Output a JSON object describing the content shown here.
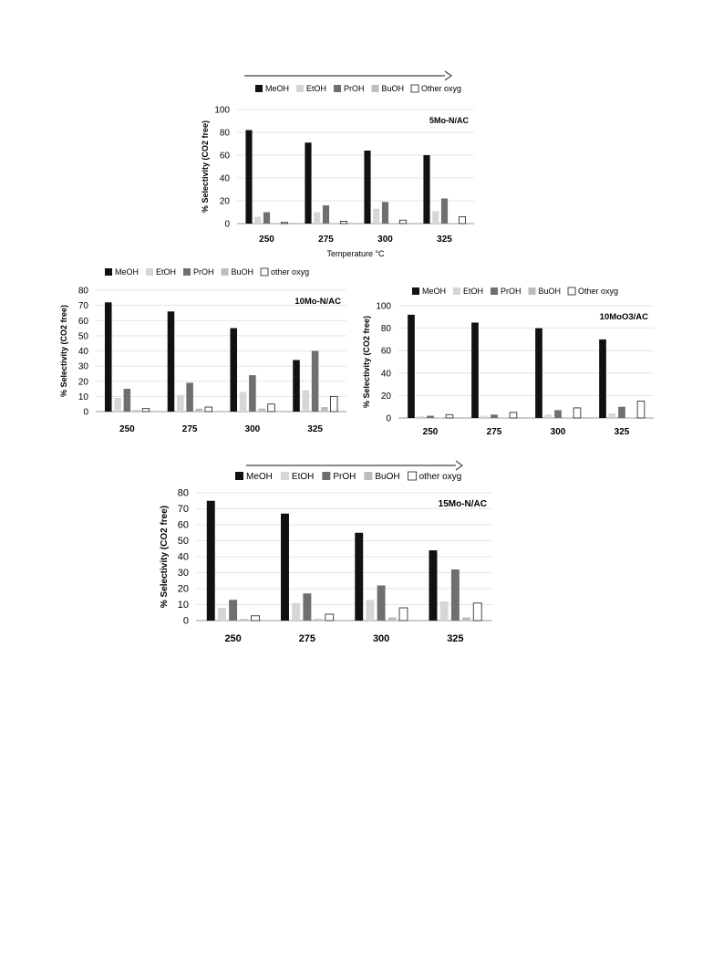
{
  "colors": {
    "MeOH": "#111111",
    "EtOH": "#d6d6d6",
    "PrOH": "#6f6f6f",
    "BuOH": "#bdbdbd",
    "Other": "#ffffff",
    "grid": "#dddddd",
    "axis": "#999999"
  },
  "chart_data": [
    {
      "type": "bar",
      "title": "5Mo-N/AC",
      "ylabel": "% Selectivity (CO2 free)",
      "xlabel": "Temperature °C",
      "ylim": [
        0,
        100
      ],
      "yticks": [
        0,
        20,
        40,
        60,
        80,
        100
      ],
      "legend_position": "top",
      "categories": [
        "250",
        "275",
        "300",
        "325"
      ],
      "series": [
        {
          "name": "MeOH",
          "values": [
            82,
            71,
            64,
            60
          ]
        },
        {
          "name": "EtOH",
          "values": [
            6,
            10,
            13,
            11
          ]
        },
        {
          "name": "PrOH",
          "values": [
            10,
            16,
            19,
            22
          ]
        },
        {
          "name": "BuOH",
          "values": [
            0.5,
            0.5,
            0.5,
            0.5
          ]
        },
        {
          "name": "Other oxyg",
          "values": [
            1,
            2,
            3,
            6
          ]
        }
      ]
    },
    {
      "type": "bar",
      "title": "10Mo-N/AC",
      "ylabel": "% Selectivity (CO2 free)",
      "xlabel": "",
      "ylim": [
        0,
        80
      ],
      "yticks": [
        0,
        10,
        20,
        30,
        40,
        50,
        60,
        70,
        80
      ],
      "legend_position": "top",
      "categories": [
        "250",
        "275",
        "300",
        "325"
      ],
      "series": [
        {
          "name": "MeOH",
          "values": [
            72,
            66,
            55,
            34
          ]
        },
        {
          "name": "EtOH",
          "values": [
            9,
            11,
            13,
            14
          ]
        },
        {
          "name": "PrOH",
          "values": [
            15,
            19,
            24,
            40
          ]
        },
        {
          "name": "BuOH",
          "values": [
            1,
            2,
            2,
            3
          ]
        },
        {
          "name": "other oxyg",
          "values": [
            2,
            3,
            5,
            10
          ]
        }
      ]
    },
    {
      "type": "bar",
      "title": "10MoO3/AC",
      "ylabel": "% Selectivity (CO2 free)",
      "xlabel": "",
      "ylim": [
        0,
        100
      ],
      "yticks": [
        0,
        20,
        40,
        60,
        80,
        100
      ],
      "legend_position": "top",
      "categories": [
        "250",
        "275",
        "300",
        "325"
      ],
      "series": [
        {
          "name": "MeOH",
          "values": [
            92,
            85,
            80,
            70
          ]
        },
        {
          "name": "EtOH",
          "values": [
            1.5,
            2,
            3,
            4
          ]
        },
        {
          "name": "PrOH",
          "values": [
            2,
            3,
            7,
            10
          ]
        },
        {
          "name": "BuOH",
          "values": [
            0.3,
            0.3,
            0.5,
            0.5
          ]
        },
        {
          "name": "Other oxyg",
          "values": [
            3,
            5,
            9,
            15
          ]
        }
      ]
    },
    {
      "type": "bar",
      "title": "15Mo-N/AC",
      "ylabel": "% Selectivity (CO2 free)",
      "xlabel": "",
      "ylim": [
        0,
        80
      ],
      "yticks": [
        0,
        10,
        20,
        30,
        40,
        50,
        60,
        70,
        80
      ],
      "legend_position": "top",
      "categories": [
        "250",
        "275",
        "300",
        "325"
      ],
      "series": [
        {
          "name": "MeOH",
          "values": [
            75,
            67,
            55,
            44
          ]
        },
        {
          "name": "EtOH",
          "values": [
            8,
            11,
            13,
            12
          ]
        },
        {
          "name": "PrOH",
          "values": [
            13,
            17,
            22,
            32
          ]
        },
        {
          "name": "BuOH",
          "values": [
            1,
            1,
            2,
            2
          ]
        },
        {
          "name": "other oxyg",
          "values": [
            3,
            4,
            8,
            11
          ]
        }
      ]
    }
  ]
}
